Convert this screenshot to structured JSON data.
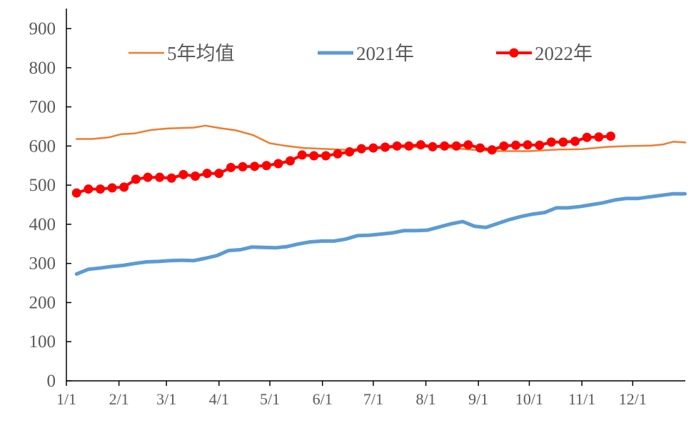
{
  "chart_data": {
    "type": "line",
    "title": "",
    "xlabel": "",
    "ylabel": "",
    "ylim": [
      0,
      900
    ],
    "yticks": [
      "0",
      "100",
      "200",
      "300",
      "400",
      "500",
      "600",
      "700",
      "800",
      "900"
    ],
    "xlim_day_of_year": [
      0,
      365
    ],
    "xticks": [
      {
        "label": "1/1",
        "day": 0
      },
      {
        "label": "2/1",
        "day": 31
      },
      {
        "label": "3/1",
        "day": 59
      },
      {
        "label": "4/1",
        "day": 90
      },
      {
        "label": "5/1",
        "day": 120
      },
      {
        "label": "6/1",
        "day": 151
      },
      {
        "label": "7/1",
        "day": 181
      },
      {
        "label": "8/1",
        "day": 212
      },
      {
        "label": "9/1",
        "day": 243
      },
      {
        "label": "10/1",
        "day": 273
      },
      {
        "label": "11/1",
        "day": 304
      },
      {
        "label": "12/1",
        "day": 334
      }
    ],
    "legend_position": "top",
    "grid": false,
    "series": [
      {
        "name": "5年均值",
        "color": "#ED7D31",
        "marker": false,
        "points": [
          [
            6,
            618
          ],
          [
            15,
            618
          ],
          [
            25,
            622
          ],
          [
            32,
            630
          ],
          [
            40,
            632
          ],
          [
            50,
            641
          ],
          [
            60,
            645
          ],
          [
            75,
            647
          ],
          [
            82,
            652
          ],
          [
            90,
            646
          ],
          [
            100,
            640
          ],
          [
            110,
            628
          ],
          [
            120,
            607
          ],
          [
            130,
            600
          ],
          [
            140,
            595
          ],
          [
            151,
            593
          ],
          [
            165,
            590
          ],
          [
            181,
            595
          ],
          [
            200,
            597
          ],
          [
            212,
            598
          ],
          [
            225,
            596
          ],
          [
            240,
            590
          ],
          [
            255,
            587
          ],
          [
            273,
            587
          ],
          [
            290,
            591
          ],
          [
            304,
            592
          ],
          [
            320,
            598
          ],
          [
            334,
            600
          ],
          [
            345,
            601
          ],
          [
            352,
            604
          ],
          [
            358,
            611
          ],
          [
            365,
            609
          ]
        ]
      },
      {
        "name": "2021年",
        "color": "#5B9BD5",
        "marker": false,
        "start_day": 6,
        "step_days": 6.9,
        "values": [
          273,
          285,
          288,
          292,
          295,
          300,
          304,
          305,
          307,
          308,
          307,
          313,
          320,
          333,
          335,
          342,
          341,
          340,
          343,
          350,
          355,
          357,
          357,
          362,
          371,
          372,
          375,
          378,
          384,
          384,
          385,
          393,
          401,
          407,
          395,
          392,
          402,
          412,
          420,
          426,
          430,
          442,
          442,
          445,
          450,
          455,
          462,
          466,
          466,
          470,
          474,
          478,
          478
        ]
      },
      {
        "name": "2022年",
        "color": "#FF0000",
        "marker": true,
        "start_day": 6,
        "step_days": 7,
        "values": [
          480,
          490,
          490,
          493,
          495,
          515,
          520,
          520,
          518,
          527,
          523,
          530,
          530,
          545,
          547,
          548,
          550,
          555,
          562,
          577,
          575,
          575,
          580,
          585,
          593,
          595,
          597,
          600,
          600,
          603,
          598,
          600,
          600,
          603,
          595,
          590,
          600,
          602,
          603,
          602,
          610,
          610,
          612,
          622,
          623,
          625
        ]
      }
    ]
  }
}
